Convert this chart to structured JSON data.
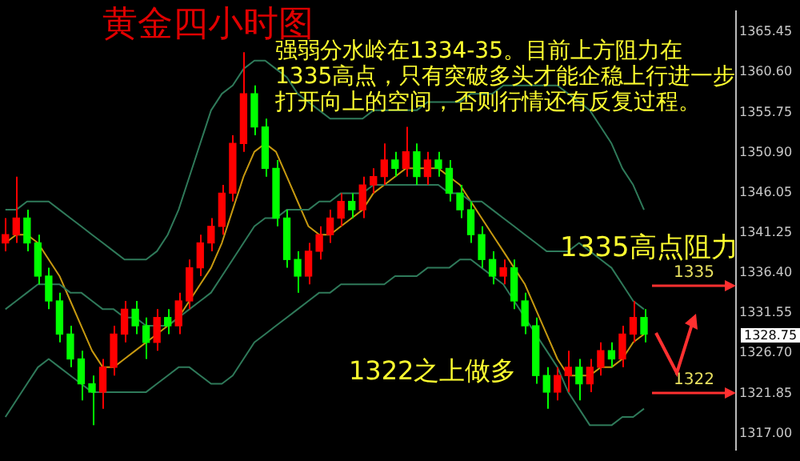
{
  "chart_data": {
    "type": "candlestick",
    "title": "黄金四小时图",
    "categories": [
      null,
      null,
      null,
      null,
      null,
      null,
      null,
      null,
      null,
      null,
      null,
      null,
      null,
      null,
      null,
      null,
      null,
      null,
      null,
      null,
      null,
      null,
      null,
      null,
      null,
      null,
      null,
      null,
      null,
      null,
      null,
      null,
      null,
      null,
      null,
      null,
      null,
      null,
      null,
      null,
      null,
      null,
      null,
      null,
      null,
      null,
      null,
      null,
      null,
      null,
      null,
      null,
      null,
      null,
      null,
      null,
      null,
      null,
      null,
      null,
      null,
      null,
      null,
      null,
      null,
      null,
      null,
      null
    ],
    "ohlc": [
      [
        1340,
        1343,
        1339,
        1341
      ],
      [
        1341,
        1348,
        1340,
        1343
      ],
      [
        1343,
        1344,
        1339,
        1340
      ],
      [
        1340,
        1341,
        1335,
        1336
      ],
      [
        1336,
        1337,
        1332,
        1333
      ],
      [
        1333,
        1334,
        1328,
        1329
      ],
      [
        1329,
        1330,
        1325,
        1326
      ],
      [
        1326,
        1327,
        1321,
        1323
      ],
      [
        1323,
        1324,
        1318,
        1322
      ],
      [
        1322,
        1326,
        1320,
        1325
      ],
      [
        1325,
        1330,
        1324,
        1329
      ],
      [
        1329,
        1333,
        1328,
        1332
      ],
      [
        1332,
        1333,
        1329,
        1330
      ],
      [
        1330,
        1331,
        1326,
        1328
      ],
      [
        1328,
        1332,
        1327,
        1331
      ],
      [
        1331,
        1332,
        1329,
        1330
      ],
      [
        1330,
        1334,
        1329,
        1333
      ],
      [
        1333,
        1338,
        1332,
        1337
      ],
      [
        1337,
        1341,
        1336,
        1340
      ],
      [
        1340,
        1343,
        1339,
        1342
      ],
      [
        1342,
        1347,
        1341,
        1346
      ],
      [
        1346,
        1353,
        1345,
        1352
      ],
      [
        1352,
        1363,
        1351,
        1358
      ],
      [
        1358,
        1359,
        1353,
        1354
      ],
      [
        1354,
        1355,
        1348,
        1349
      ],
      [
        1349,
        1350,
        1342,
        1343
      ],
      [
        1343,
        1344,
        1337,
        1338
      ],
      [
        1338,
        1339,
        1334,
        1336
      ],
      [
        1336,
        1340,
        1335,
        1339
      ],
      [
        1339,
        1342,
        1338,
        1341
      ],
      [
        1341,
        1344,
        1340,
        1343
      ],
      [
        1343,
        1346,
        1342,
        1345
      ],
      [
        1345,
        1346,
        1343,
        1344
      ],
      [
        1344,
        1348,
        1343,
        1347
      ],
      [
        1347,
        1349,
        1346,
        1348
      ],
      [
        1348,
        1352,
        1347,
        1350
      ],
      [
        1350,
        1351,
        1348,
        1349
      ],
      [
        1349,
        1354,
        1348,
        1351
      ],
      [
        1351,
        1352,
        1347,
        1348
      ],
      [
        1348,
        1351,
        1347,
        1350
      ],
      [
        1350,
        1351,
        1348,
        1349
      ],
      [
        1349,
        1350,
        1345,
        1346
      ],
      [
        1346,
        1347,
        1343,
        1344
      ],
      [
        1344,
        1345,
        1340,
        1341
      ],
      [
        1341,
        1342,
        1337,
        1338
      ],
      [
        1338,
        1339,
        1335,
        1336
      ],
      [
        1336,
        1338,
        1335,
        1337
      ],
      [
        1337,
        1338,
        1332,
        1333
      ],
      [
        1333,
        1334,
        1329,
        1330
      ],
      [
        1330,
        1331,
        1323,
        1324
      ],
      [
        1324,
        1325,
        1320,
        1322
      ],
      [
        1322,
        1325,
        1321,
        1324
      ],
      [
        1324,
        1327,
        1322,
        1325
      ],
      [
        1325,
        1326,
        1321,
        1323
      ],
      [
        1323,
        1326,
        1322,
        1325
      ],
      [
        1325,
        1328,
        1324,
        1327
      ],
      [
        1327,
        1328,
        1325,
        1326
      ],
      [
        1326,
        1330,
        1325,
        1329
      ],
      [
        1329,
        1333,
        1328,
        1331
      ],
      [
        1331,
        1332,
        1328,
        1329
      ],
      null,
      null,
      null,
      null,
      null,
      null,
      null,
      null
    ],
    "colors": [
      "#ff0000",
      "#ff0000",
      "#00ff00",
      "#00ff00",
      "#00ff00",
      "#00ff00",
      "#00ff00",
      "#00ff00",
      "#00ff00",
      "#ff0000",
      "#ff0000",
      "#ff0000",
      "#00ff00",
      "#00ff00",
      "#ff0000",
      "#00ff00",
      "#ff0000",
      "#ff0000",
      "#ff0000",
      "#ff0000",
      "#ff0000",
      "#ff0000",
      "#ff0000",
      "#00ff00",
      "#00ff00",
      "#00ff00",
      "#00ff00",
      "#00ff00",
      "#ff0000",
      "#ff0000",
      "#ff0000",
      "#ff0000",
      "#00ff00",
      "#ff0000",
      "#ff0000",
      "#ff0000",
      "#00ff00",
      "#ff0000",
      "#00ff00",
      "#ff0000",
      "#00ff00",
      "#00ff00",
      "#00ff00",
      "#00ff00",
      "#00ff00",
      "#00ff00",
      "#ff0000",
      "#00ff00",
      "#00ff00",
      "#00ff00",
      "#00ff00",
      "#ff0000",
      "#ff0000",
      "#00ff00",
      "#ff0000",
      "#ff0000",
      "#00ff00",
      "#ff0000",
      "#ff0000",
      "#00ff00",
      null,
      null,
      null,
      null,
      null,
      null,
      null,
      null
    ],
    "series": [
      {
        "type": "line",
        "color": "#2f7a5a",
        "values": [
          1344,
          1344,
          1345,
          1345,
          1345,
          1344,
          1343,
          1342,
          1341,
          1340,
          1339,
          1338,
          1338,
          1338,
          1339,
          1341,
          1344,
          1348,
          1352,
          1356,
          1358,
          1359,
          1361,
          1362,
          1362,
          1361,
          1360,
          1358,
          1357,
          1356,
          1355,
          1355,
          1355,
          1355,
          1356,
          1356,
          1356,
          1356,
          1356,
          1357,
          1357,
          1357,
          1357,
          1358,
          1358,
          1358,
          1359,
          1359,
          1359,
          1359,
          1359,
          1359,
          1358,
          1357,
          1356,
          1354,
          1352,
          1349,
          1347,
          1344,
          null,
          null,
          null,
          null,
          null,
          null,
          null,
          null
        ]
      },
      {
        "type": "line",
        "color": "#2f7a5a",
        "values": [
          1332,
          1333,
          1334,
          1335,
          1335,
          1335,
          1334,
          1334,
          1333,
          1332,
          1332,
          1331,
          1331,
          1330,
          1330,
          1330,
          1331,
          1332,
          1333,
          1334,
          1336,
          1338,
          1340,
          1342,
          1343,
          1343,
          1344,
          1344,
          1344,
          1345,
          1345,
          1346,
          1346,
          1346,
          1347,
          1347,
          1347,
          1347,
          1347,
          1347,
          1347,
          1346,
          1346,
          1345,
          1345,
          1344,
          1343,
          1342,
          1341,
          1340,
          1339,
          1339,
          1339,
          1340,
          1339,
          1338,
          1337,
          1335,
          1333,
          1332,
          null,
          null,
          null,
          null,
          null,
          null,
          null,
          null
        ]
      },
      {
        "type": "line",
        "color": "#2f7a5a",
        "values": [
          1319,
          1321,
          1323,
          1325,
          1326,
          1325,
          1324,
          1323,
          1322,
          1322,
          1322,
          1322,
          1322,
          1322,
          1323,
          1324,
          1325,
          1325,
          1324,
          1323,
          1323,
          1324,
          1326,
          1328,
          1329,
          1330,
          1331,
          1332,
          1333,
          1334,
          1334,
          1335,
          1335,
          1335,
          1335,
          1335,
          1336,
          1336,
          1336,
          1337,
          1337,
          1337,
          1338,
          1338,
          1337,
          1336,
          1335,
          1333,
          1331,
          1329,
          1327,
          1325,
          1322,
          1320,
          1318,
          1318,
          1318,
          1319,
          1319,
          1320,
          null,
          null,
          null,
          null,
          null,
          null,
          null,
          null
        ]
      },
      {
        "type": "line",
        "color": "#c89a10",
        "values": [
          1340,
          1341,
          1341,
          1340,
          1338,
          1336,
          1333,
          1330,
          1327,
          1325,
          1325,
          1326,
          1327,
          1328,
          1329,
          1330,
          1331,
          1333,
          1335,
          1337,
          1340,
          1344,
          1348,
          1351,
          1352,
          1351,
          1348,
          1345,
          1342,
          1341,
          1341,
          1342,
          1343,
          1344,
          1346,
          1347,
          1348,
          1349,
          1349,
          1349,
          1349,
          1348,
          1347,
          1345,
          1343,
          1341,
          1339,
          1337,
          1335,
          1332,
          1329,
          1326,
          1324,
          1324,
          1324,
          1325,
          1325,
          1326,
          1328,
          1329,
          null,
          null,
          null,
          null,
          null,
          null,
          null,
          null
        ]
      }
    ],
    "ylim": [
      1315,
      1368
    ],
    "yticks": [
      1365.45,
      {
        "value": 1360.6,
        "label": "1360.60"
      },
      1355.75,
      {
        "value": 1350.9,
        "label": "1350.90"
      },
      1346.05,
      1341.25,
      {
        "value": 1336.4,
        "label": "1336.40"
      },
      1331.55,
      {
        "value": 1326.7,
        "label": "1326.70"
      },
      1321.85,
      {
        "value": 1317,
        "label": "1317.00"
      }
    ],
    "tick_labels": "y",
    "ref_lines": [
      {
        "axis": "y",
        "value": 1335,
        "label": "1335",
        "color": "#ff3030"
      },
      {
        "axis": "y",
        "value": 1322,
        "label": "1322",
        "color": "#ff3030"
      }
    ],
    "annotations": [
      "强弱分水岭在1334-35。目前上方阻力在1335高点，只有突破多头才能企稳上行进一步打开向上的空间，否则行情还有反复过程。",
      "1335高点阻力",
      "1322之上做多",
      "1328.75"
    ]
  }
}
